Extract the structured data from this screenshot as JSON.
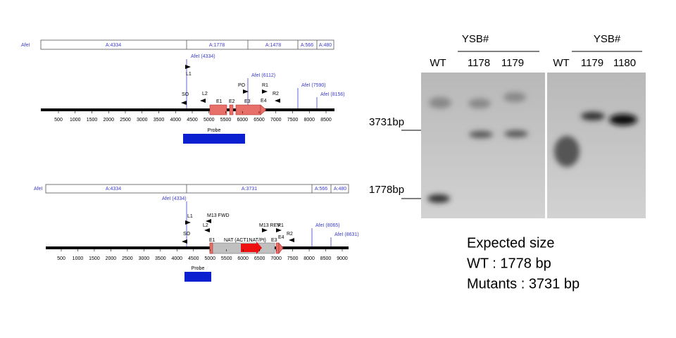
{
  "map_wt": {
    "site_label": "AfeI",
    "fragments": [
      "A:4334",
      "A:1778",
      "A:1478",
      "A:566",
      "A:480"
    ],
    "sites": [
      "AfeI (4334)",
      "AfeI (6112)",
      "AfeI (7590)",
      "AfeI (8156)"
    ],
    "features": [
      "L1",
      "SO",
      "L2",
      "E1",
      "E2",
      "E3",
      "PO",
      "R1",
      "E4",
      "R2"
    ],
    "ticks": [
      "500",
      "1000",
      "1500",
      "2000",
      "2500",
      "3000",
      "3500",
      "4000",
      "4500",
      "5000",
      "5500",
      "6000",
      "6500",
      "7000",
      "7500",
      "8000",
      "8500"
    ],
    "probe": "Probe"
  },
  "map_mutant": {
    "site_label": "AfeI",
    "fragments": [
      "A:4334",
      "A:3731",
      "A:566",
      "A:480"
    ],
    "sites": [
      "AfeI (4334)",
      "AfeI (8065)",
      "AfeI (8631)"
    ],
    "features": [
      "L1",
      "SO",
      "M13 FWD",
      "L2",
      "E1",
      "NAT (ACT1NAT/Pt)",
      "M13 REV",
      "R1",
      "E3",
      "E4",
      "R2"
    ],
    "ticks": [
      "500",
      "1000",
      "1500",
      "2000",
      "2500",
      "3000",
      "3500",
      "4000",
      "4500",
      "5000",
      "5500",
      "6000",
      "6500",
      "7000",
      "7500",
      "8000",
      "8500",
      "9000"
    ],
    "probe": "Probe"
  },
  "blot": {
    "panels": [
      {
        "group": "YSB#",
        "lanes": [
          "WT",
          "1178",
          "1179"
        ]
      },
      {
        "group": "YSB#",
        "lanes": [
          "WT",
          "1179",
          "1180"
        ]
      }
    ],
    "markers": [
      "3731bp",
      "1778bp"
    ]
  },
  "expected": {
    "title": "Expected size",
    "lines": [
      "WT : 1778 bp",
      "Mutants : 3731 bp"
    ]
  }
}
